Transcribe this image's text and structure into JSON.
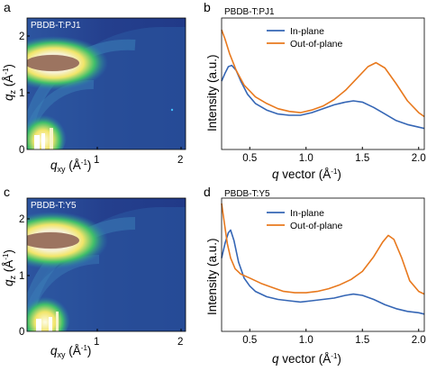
{
  "figure": {
    "panels": {
      "a": {
        "letter": "a",
        "title": "PBDB-T:PJ1"
      },
      "b": {
        "letter": "b",
        "title": "PBDB-T:PJ1"
      },
      "c": {
        "letter": "c",
        "title": "PBDB-T:Y5"
      },
      "d": {
        "letter": "d",
        "title": "PBDB-T:Y5"
      }
    },
    "map_axes": {
      "ylabel_main": "q",
      "ylabel_sub": "z",
      "ylabel_unit": "(Å",
      "ylabel_exp": "-1",
      "ylabel_close": ")",
      "xlabel_main": "q",
      "xlabel_sub": "xy",
      "xlabel_unit": "(Å",
      "xlabel_exp": "-1",
      "xlabel_close": ")",
      "xticks": [
        "1",
        "2"
      ],
      "yticks": [
        "2",
        "1",
        "0"
      ]
    },
    "profile_axes": {
      "ylabel": "Intensity (a.u.)",
      "xlabel_main": "q",
      "xlabel_rest": "vector (Å",
      "xlabel_exp": "-1",
      "xlabel_close": ")",
      "xticks": [
        "0.5",
        "1.0",
        "1.5",
        "2.0"
      ]
    }
  },
  "colors": {
    "in_plane": "#3566b5",
    "out_of_plane": "#e8791e",
    "map_background": "#233d8a"
  },
  "chart_data": [
    {
      "panel": "a",
      "type": "heatmap",
      "title": "PBDB-T:PJ1",
      "xlabel": "q_xy (Å^-1)",
      "ylabel": "q_z (Å^-1)",
      "xlim": [
        0,
        2.05
      ],
      "ylim": [
        0,
        2.45
      ],
      "features": [
        {
          "name": "pi-pi stacking arc",
          "q_xy": 0.3,
          "q_z": 1.72,
          "intensity": "high"
        },
        {
          "name": "lamellar peak",
          "q_xy": 0.2,
          "q_z": 0.3,
          "intensity": "high"
        }
      ]
    },
    {
      "panel": "b",
      "type": "line",
      "title": "PBDB-T:PJ1",
      "xlabel": "q vector (Å^-1)",
      "ylabel": "Intensity (a.u.)",
      "xlim": [
        0.25,
        2.05
      ],
      "ylim": [
        0,
        1
      ],
      "y_ticks_shown": false,
      "legend": "top-center",
      "series": [
        {
          "name": "In-plane",
          "x": [
            0.25,
            0.28,
            0.31,
            0.34,
            0.38,
            0.42,
            0.48,
            0.55,
            0.65,
            0.75,
            0.85,
            0.95,
            1.05,
            1.15,
            1.25,
            1.35,
            1.42,
            1.5,
            1.6,
            1.7,
            1.8,
            1.9,
            2.0,
            2.05
          ],
          "y": [
            0.52,
            0.58,
            0.63,
            0.64,
            0.6,
            0.52,
            0.42,
            0.35,
            0.3,
            0.27,
            0.26,
            0.26,
            0.28,
            0.31,
            0.34,
            0.36,
            0.37,
            0.36,
            0.32,
            0.27,
            0.22,
            0.19,
            0.17,
            0.16
          ]
        },
        {
          "name": "Out-of-plane",
          "x": [
            0.25,
            0.28,
            0.32,
            0.38,
            0.45,
            0.55,
            0.65,
            0.75,
            0.85,
            0.95,
            1.05,
            1.15,
            1.25,
            1.35,
            1.45,
            1.55,
            1.62,
            1.7,
            1.8,
            1.9,
            2.0,
            2.05
          ],
          "y": [
            0.91,
            0.84,
            0.73,
            0.6,
            0.49,
            0.4,
            0.35,
            0.31,
            0.29,
            0.28,
            0.3,
            0.33,
            0.38,
            0.45,
            0.54,
            0.63,
            0.66,
            0.62,
            0.5,
            0.37,
            0.28,
            0.25
          ]
        }
      ]
    },
    {
      "panel": "c",
      "type": "heatmap",
      "title": "PBDB-T:Y5",
      "xlabel": "q_xy (Å^-1)",
      "ylabel": "q_z (Å^-1)",
      "xlim": [
        0,
        2.05
      ],
      "ylim": [
        0,
        2.45
      ],
      "features": [
        {
          "name": "pi-pi stacking arc",
          "q_xy": 0.3,
          "q_z": 1.78,
          "intensity": "high"
        },
        {
          "name": "lamellar peak",
          "q_xy": 0.2,
          "q_z": 0.3,
          "intensity": "high"
        }
      ]
    },
    {
      "panel": "d",
      "type": "line",
      "title": "PBDB-T:Y5",
      "xlabel": "q vector (Å^-1)",
      "ylabel": "Intensity (a.u.)",
      "xlim": [
        0.25,
        2.05
      ],
      "ylim": [
        0,
        1
      ],
      "y_ticks_shown": false,
      "legend": "top-center",
      "series": [
        {
          "name": "In-plane",
          "x": [
            0.25,
            0.28,
            0.31,
            0.33,
            0.36,
            0.4,
            0.45,
            0.5,
            0.55,
            0.65,
            0.75,
            0.85,
            0.95,
            1.05,
            1.15,
            1.25,
            1.35,
            1.42,
            1.5,
            1.6,
            1.7,
            1.8,
            1.9,
            2.0,
            2.05
          ],
          "y": [
            0.55,
            0.66,
            0.74,
            0.76,
            0.68,
            0.52,
            0.4,
            0.34,
            0.3,
            0.26,
            0.24,
            0.23,
            0.22,
            0.23,
            0.24,
            0.25,
            0.27,
            0.28,
            0.27,
            0.24,
            0.2,
            0.17,
            0.15,
            0.14,
            0.13
          ]
        },
        {
          "name": "Out-of-plane",
          "x": [
            0.25,
            0.27,
            0.3,
            0.33,
            0.37,
            0.42,
            0.5,
            0.6,
            0.7,
            0.8,
            0.9,
            1.0,
            1.1,
            1.2,
            1.3,
            1.4,
            1.5,
            1.6,
            1.68,
            1.73,
            1.78,
            1.85,
            1.92,
            2.0,
            2.05
          ],
          "y": [
            0.96,
            0.84,
            0.66,
            0.55,
            0.47,
            0.43,
            0.4,
            0.36,
            0.33,
            0.3,
            0.29,
            0.29,
            0.3,
            0.32,
            0.35,
            0.39,
            0.45,
            0.56,
            0.67,
            0.72,
            0.69,
            0.55,
            0.38,
            0.3,
            0.28
          ]
        }
      ]
    }
  ]
}
